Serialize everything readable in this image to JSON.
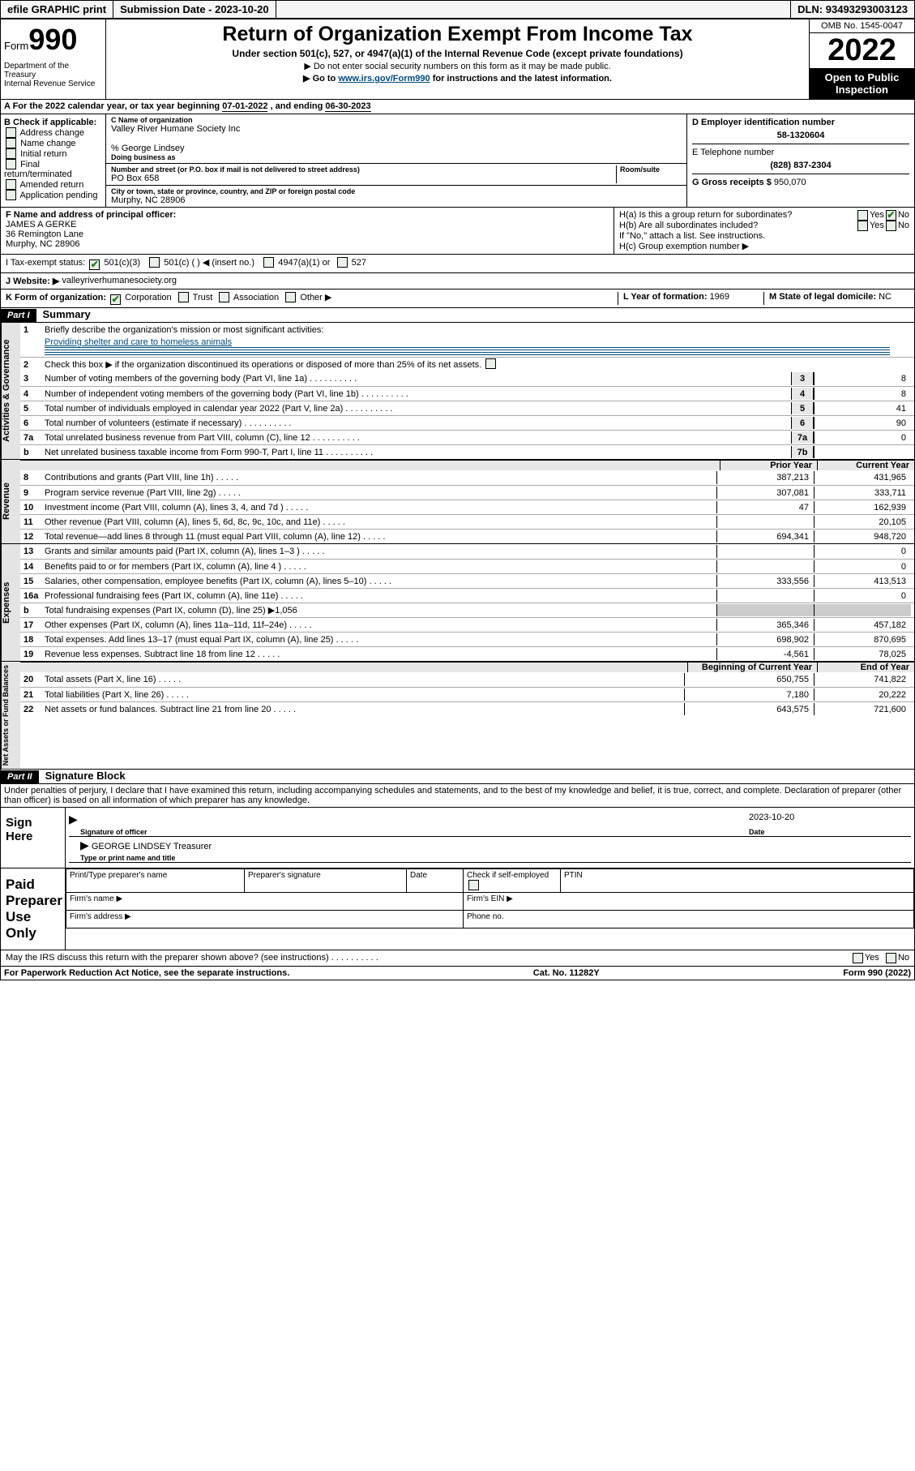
{
  "topbar": {
    "efile": "efile GRAPHIC print",
    "submission_label": "Submission Date - ",
    "submission_date": "2023-10-20",
    "dln_label": "DLN: ",
    "dln": "93493293003123"
  },
  "header": {
    "form_word": "Form",
    "form_num": "990",
    "dept": "Department of the Treasury\nInternal Revenue Service",
    "title": "Return of Organization Exempt From Income Tax",
    "subtitle": "Under section 501(c), 527, or 4947(a)(1) of the Internal Revenue Code (except private foundations)",
    "note1": "▶ Do not enter social security numbers on this form as it may be made public.",
    "note2_pre": "▶ Go to ",
    "note2_link": "www.irs.gov/Form990",
    "note2_post": " for instructions and the latest information.",
    "omb": "OMB No. 1545-0047",
    "year": "2022",
    "open": "Open to Public Inspection"
  },
  "A": {
    "text": "A For the 2022 calendar year, or tax year beginning ",
    "begin": "07-01-2022",
    "mid": " , and ending ",
    "end": "06-30-2023"
  },
  "B": {
    "label": "B Check if applicable:",
    "opts": [
      "Address change",
      "Name change",
      "Initial return",
      "Final return/terminated",
      "Amended return",
      "Application pending"
    ]
  },
  "C": {
    "name_label": "C Name of organization",
    "name": "Valley River Humane Society Inc",
    "care_of": "% George Lindsey",
    "dba_label": "Doing business as",
    "street_label": "Number and street (or P.O. box if mail is not delivered to street address)",
    "room_label": "Room/suite",
    "street": "PO Box 658",
    "city_label": "City or town, state or province, country, and ZIP or foreign postal code",
    "city": "Murphy, NC  28906"
  },
  "D": {
    "label": "D Employer identification number",
    "ein": "58-1320604"
  },
  "E": {
    "label": "E Telephone number",
    "phone": "(828) 837-2304"
  },
  "G": {
    "label": "G Gross receipts $ ",
    "val": "950,070"
  },
  "F": {
    "label": "F Name and address of principal officer:",
    "name": "JAMES A GERKE",
    "addr1": "36 Remington Lane",
    "addr2": "Murphy, NC  28906"
  },
  "H": {
    "a": "H(a)  Is this a group return for subordinates?",
    "a_yes": "Yes",
    "a_no": "No",
    "b": "H(b)  Are all subordinates included?",
    "b_note": "If \"No,\" attach a list. See instructions.",
    "c": "H(c)  Group exemption number ▶"
  },
  "I": {
    "label": "I   Tax-exempt status:",
    "o1": "501(c)(3)",
    "o2": "501(c) (   ) ◀ (insert no.)",
    "o3": "4947(a)(1) or",
    "o4": "527"
  },
  "J": {
    "label": "J   Website: ▶ ",
    "val": "valleyriverhumanesociety.org"
  },
  "K": {
    "label": "K Form of organization:",
    "o1": "Corporation",
    "o2": "Trust",
    "o3": "Association",
    "o4": "Other ▶"
  },
  "L": {
    "label": "L Year of formation: ",
    "val": "1969"
  },
  "M": {
    "label": "M State of legal domicile: ",
    "val": "NC"
  },
  "parts": {
    "p1": "Part I",
    "p1_title": "Summary",
    "p2": "Part II",
    "p2_title": "Signature Block"
  },
  "summary": {
    "mission_q": "Briefly describe the organization's mission or most significant activities:",
    "mission": "Providing shelter and care to homeless animals",
    "line2": "Check this box ▶        if the organization discontinued its operations or disposed of more than 25% of its net assets.",
    "rows_gov": [
      {
        "n": "3",
        "t": "Number of voting members of the governing body (Part VI, line 1a)",
        "box": "3",
        "v": "8"
      },
      {
        "n": "4",
        "t": "Number of independent voting members of the governing body (Part VI, line 1b)",
        "box": "4",
        "v": "8"
      },
      {
        "n": "5",
        "t": "Total number of individuals employed in calendar year 2022 (Part V, line 2a)",
        "box": "5",
        "v": "41"
      },
      {
        "n": "6",
        "t": "Total number of volunteers (estimate if necessary)",
        "box": "6",
        "v": "90"
      },
      {
        "n": "7a",
        "t": "Total unrelated business revenue from Part VIII, column (C), line 12",
        "box": "7a",
        "v": "0"
      },
      {
        "n": "b",
        "t": "Net unrelated business taxable income from Form 990-T, Part I, line 11",
        "box": "7b",
        "v": ""
      }
    ],
    "col_prior": "Prior Year",
    "col_current": "Current Year",
    "rows_rev": [
      {
        "n": "8",
        "t": "Contributions and grants (Part VIII, line 1h)",
        "p": "387,213",
        "c": "431,965"
      },
      {
        "n": "9",
        "t": "Program service revenue (Part VIII, line 2g)",
        "p": "307,081",
        "c": "333,711"
      },
      {
        "n": "10",
        "t": "Investment income (Part VIII, column (A), lines 3, 4, and 7d )",
        "p": "47",
        "c": "162,939"
      },
      {
        "n": "11",
        "t": "Other revenue (Part VIII, column (A), lines 5, 6d, 8c, 9c, 10c, and 11e)",
        "p": "",
        "c": "20,105"
      },
      {
        "n": "12",
        "t": "Total revenue—add lines 8 through 11 (must equal Part VIII, column (A), line 12)",
        "p": "694,341",
        "c": "948,720"
      }
    ],
    "rows_exp": [
      {
        "n": "13",
        "t": "Grants and similar amounts paid (Part IX, column (A), lines 1–3 )",
        "p": "",
        "c": "0"
      },
      {
        "n": "14",
        "t": "Benefits paid to or for members (Part IX, column (A), line 4 )",
        "p": "",
        "c": "0"
      },
      {
        "n": "15",
        "t": "Salaries, other compensation, employee benefits (Part IX, column (A), lines 5–10)",
        "p": "333,556",
        "c": "413,513"
      },
      {
        "n": "16a",
        "t": "Professional fundraising fees (Part IX, column (A), line 11e)",
        "p": "",
        "c": "0"
      },
      {
        "n": "b",
        "t": "Total fundraising expenses (Part IX, column (D), line 25) ▶1,056",
        "p": "—",
        "c": "—"
      },
      {
        "n": "17",
        "t": "Other expenses (Part IX, column (A), lines 11a–11d, 11f–24e)",
        "p": "365,346",
        "c": "457,182"
      },
      {
        "n": "18",
        "t": "Total expenses. Add lines 13–17 (must equal Part IX, column (A), line 25)",
        "p": "698,902",
        "c": "870,695"
      },
      {
        "n": "19",
        "t": "Revenue less expenses. Subtract line 18 from line 12",
        "p": "-4,561",
        "c": "78,025"
      }
    ],
    "col_begin": "Beginning of Current Year",
    "col_end": "End of Year",
    "rows_net": [
      {
        "n": "20",
        "t": "Total assets (Part X, line 16)",
        "p": "650,755",
        "c": "741,822"
      },
      {
        "n": "21",
        "t": "Total liabilities (Part X, line 26)",
        "p": "7,180",
        "c": "20,222"
      },
      {
        "n": "22",
        "t": "Net assets or fund balances. Subtract line 21 from line 20",
        "p": "643,575",
        "c": "721,600"
      }
    ],
    "vtabs": {
      "gov": "Activities & Governance",
      "rev": "Revenue",
      "exp": "Expenses",
      "net": "Net Assets or Fund Balances"
    }
  },
  "sig": {
    "penalties": "Under penalties of perjury, I declare that I have examined this return, including accompanying schedules and statements, and to the best of my knowledge and belief, it is true, correct, and complete. Declaration of preparer (other than officer) is based on all information of which preparer has any knowledge.",
    "sign_here": "Sign Here",
    "sig_officer": "Signature of officer",
    "date_label": "Date",
    "sig_date": "2023-10-20",
    "name_title": "GEORGE LINDSEY  Treasurer",
    "type_label": "Type or print name and title",
    "paid": "Paid Preparer Use Only",
    "col_prep_name": "Print/Type preparer's name",
    "col_prep_sig": "Preparer's signature",
    "col_date": "Date",
    "col_check": "Check         if self-employed",
    "col_ptin": "PTIN",
    "firms_name": "Firm's name    ▶",
    "firms_ein": "Firm's EIN ▶",
    "firms_addr": "Firm's address ▶",
    "phone": "Phone no."
  },
  "footer": {
    "may": "May the IRS discuss this return with the preparer shown above? (see instructions)",
    "yes": "Yes",
    "no": "No",
    "pra": "For Paperwork Reduction Act Notice, see the separate instructions.",
    "cat": "Cat. No. 11282Y",
    "form": "Form 990 (2022)"
  }
}
